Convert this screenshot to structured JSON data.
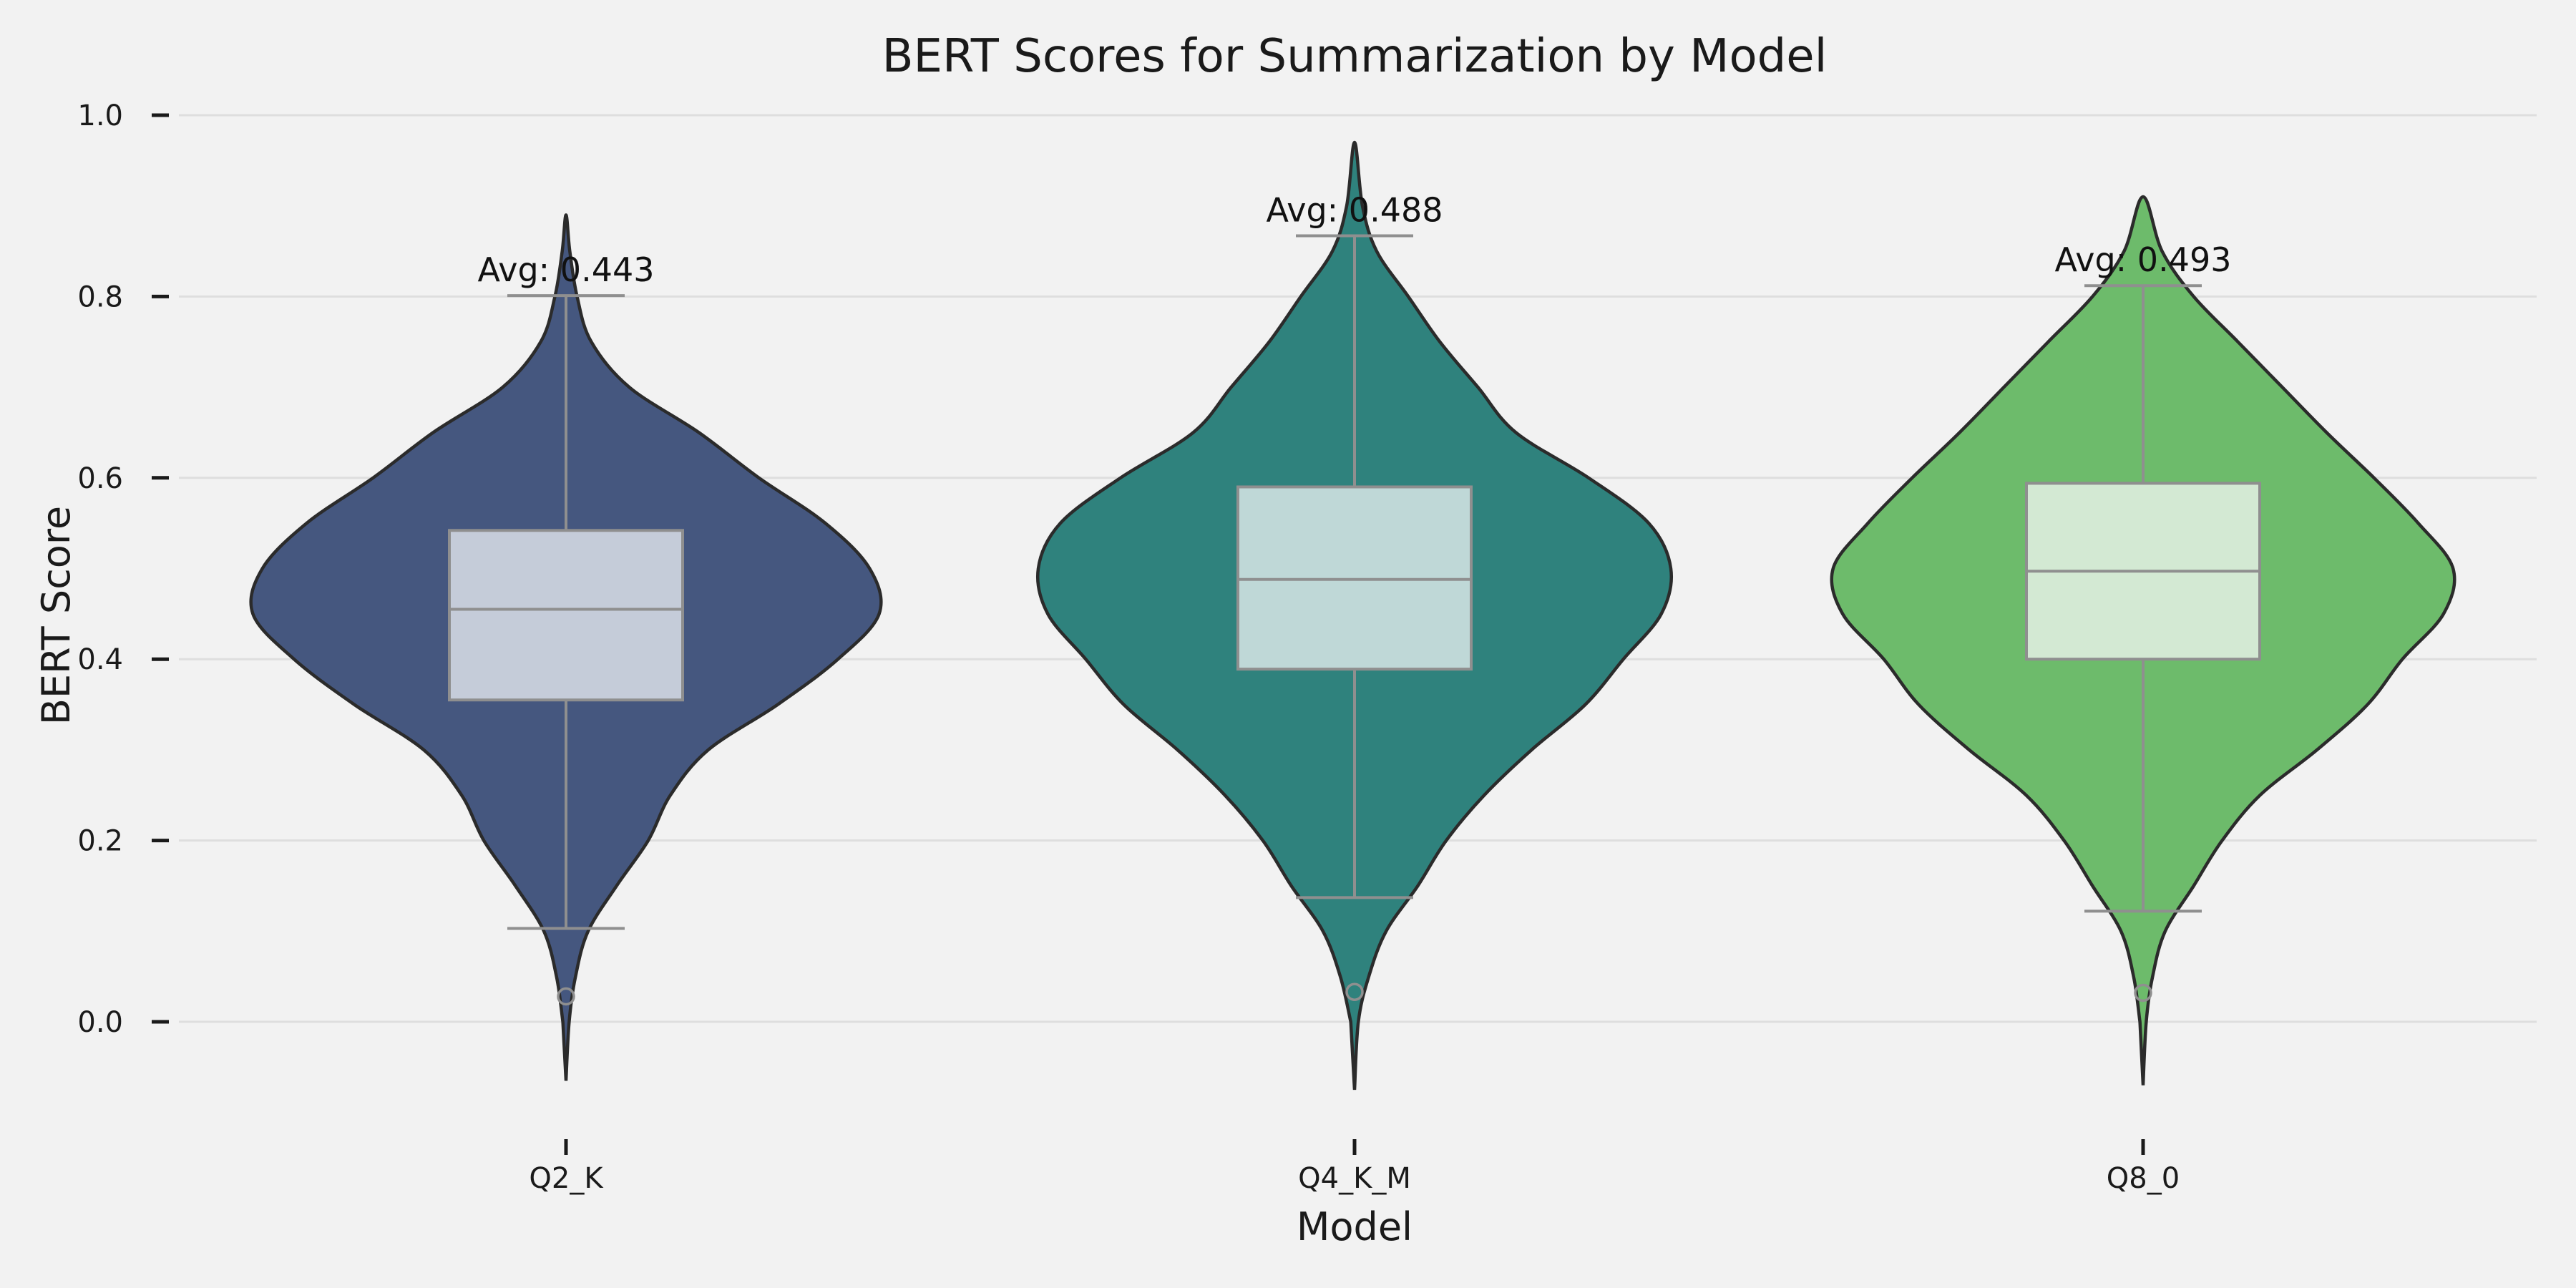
{
  "chart_data": {
    "type": "violin",
    "title": "BERT Scores for Summarization by Model",
    "xlabel": "Model",
    "ylabel": "BERT Score",
    "ylim": [
      -0.12,
      1.0
    ],
    "yticks": [
      0.0,
      0.2,
      0.4,
      0.6,
      0.8,
      1.0
    ],
    "ytick_labels": [
      "0.0",
      "0.2",
      "0.4",
      "0.6",
      "0.8",
      "1.0"
    ],
    "grid": "horizontal",
    "categories": [
      "Q2_K",
      "Q4_K_M",
      "Q8_0"
    ],
    "series": [
      {
        "category": "Q2_K",
        "color": "#45577f",
        "box_color": "#c5ccd9",
        "range": [
          -0.065,
          0.89
        ],
        "whisker_low": 0.103,
        "q1": 0.355,
        "median": 0.455,
        "q3": 0.542,
        "whisker_high": 0.801,
        "outliers": [
          0.028
        ],
        "mean": 0.443,
        "avg_label": "Avg: 0.443",
        "density": [
          [
            -0.065,
            0.0
          ],
          [
            0.0,
            0.01
          ],
          [
            0.05,
            0.03
          ],
          [
            0.1,
            0.07
          ],
          [
            0.15,
            0.16
          ],
          [
            0.2,
            0.26
          ],
          [
            0.25,
            0.33
          ],
          [
            0.3,
            0.45
          ],
          [
            0.35,
            0.67
          ],
          [
            0.4,
            0.86
          ],
          [
            0.45,
            0.99
          ],
          [
            0.5,
            0.96
          ],
          [
            0.55,
            0.82
          ],
          [
            0.6,
            0.61
          ],
          [
            0.65,
            0.42
          ],
          [
            0.7,
            0.2
          ],
          [
            0.75,
            0.08
          ],
          [
            0.8,
            0.035
          ],
          [
            0.85,
            0.012
          ],
          [
            0.89,
            0.0
          ]
        ]
      },
      {
        "category": "Q4_K_M",
        "color": "#2f827d",
        "box_color": "#bfd8d7",
        "range": [
          -0.075,
          0.97
        ],
        "whisker_low": 0.137,
        "q1": 0.389,
        "median": 0.488,
        "q3": 0.59,
        "whisker_high": 0.867,
        "outliers": [
          0.033
        ],
        "mean": 0.488,
        "avg_label": "Avg: 0.488",
        "density": [
          [
            -0.075,
            0.0
          ],
          [
            0.0,
            0.012
          ],
          [
            0.05,
            0.045
          ],
          [
            0.1,
            0.1
          ],
          [
            0.15,
            0.2
          ],
          [
            0.2,
            0.29
          ],
          [
            0.25,
            0.41
          ],
          [
            0.3,
            0.56
          ],
          [
            0.35,
            0.73
          ],
          [
            0.4,
            0.85
          ],
          [
            0.45,
            0.97
          ],
          [
            0.5,
            1.0
          ],
          [
            0.55,
            0.93
          ],
          [
            0.6,
            0.74
          ],
          [
            0.65,
            0.51
          ],
          [
            0.7,
            0.39
          ],
          [
            0.75,
            0.27
          ],
          [
            0.8,
            0.17
          ],
          [
            0.85,
            0.07
          ],
          [
            0.9,
            0.025
          ],
          [
            0.97,
            0.0
          ]
        ]
      },
      {
        "category": "Q8_0",
        "color": "#6dbb6b",
        "box_color": "#d3e9d3",
        "range": [
          -0.07,
          0.91
        ],
        "whisker_low": 0.122,
        "q1": 0.4,
        "median": 0.497,
        "q3": 0.594,
        "whisker_high": 0.812,
        "outliers": [
          0.032
        ],
        "mean": 0.493,
        "avg_label": "Avg: 0.493",
        "density": [
          [
            -0.07,
            0.0
          ],
          [
            0.0,
            0.01
          ],
          [
            0.05,
            0.03
          ],
          [
            0.1,
            0.07
          ],
          [
            0.15,
            0.16
          ],
          [
            0.2,
            0.25
          ],
          [
            0.25,
            0.37
          ],
          [
            0.3,
            0.55
          ],
          [
            0.35,
            0.71
          ],
          [
            0.4,
            0.82
          ],
          [
            0.45,
            0.95
          ],
          [
            0.5,
            0.98
          ],
          [
            0.55,
            0.87
          ],
          [
            0.6,
            0.73
          ],
          [
            0.65,
            0.58
          ],
          [
            0.7,
            0.44
          ],
          [
            0.75,
            0.3
          ],
          [
            0.8,
            0.16
          ],
          [
            0.85,
            0.06
          ],
          [
            0.91,
            0.0
          ]
        ]
      }
    ]
  }
}
